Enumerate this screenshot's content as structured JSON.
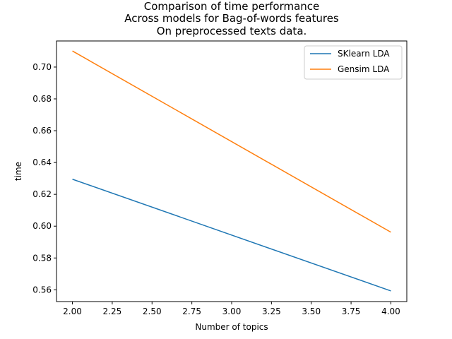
{
  "chart_data": {
    "type": "line",
    "title": [
      "Comparison of time performance",
      "Across models for Bag-of-words features",
      "On preprocessed texts data."
    ],
    "xlabel": "Number of topics",
    "ylabel": "time",
    "x": [
      2.0,
      4.0
    ],
    "xticks": [
      "2.00",
      "2.25",
      "2.50",
      "2.75",
      "3.00",
      "3.25",
      "3.50",
      "3.75",
      "4.00"
    ],
    "xtick_values": [
      2.0,
      2.25,
      2.5,
      2.75,
      3.0,
      3.25,
      3.5,
      3.75,
      4.0
    ],
    "yticks": [
      "0.56",
      "0.58",
      "0.60",
      "0.62",
      "0.64",
      "0.66",
      "0.68",
      "0.70"
    ],
    "ytick_values": [
      0.56,
      0.58,
      0.6,
      0.62,
      0.64,
      0.66,
      0.68,
      0.7
    ],
    "xlim": [
      1.9,
      4.1
    ],
    "ylim": [
      0.5526,
      0.7164
    ],
    "grid": false,
    "legend_position": "top-right",
    "series": [
      {
        "name": "SKlearn LDA",
        "color": "#1f77b4",
        "values": [
          0.6295,
          0.5593
        ]
      },
      {
        "name": "Gensim LDA",
        "color": "#ff7f0e",
        "values": [
          0.7101,
          0.5962
        ]
      }
    ]
  }
}
